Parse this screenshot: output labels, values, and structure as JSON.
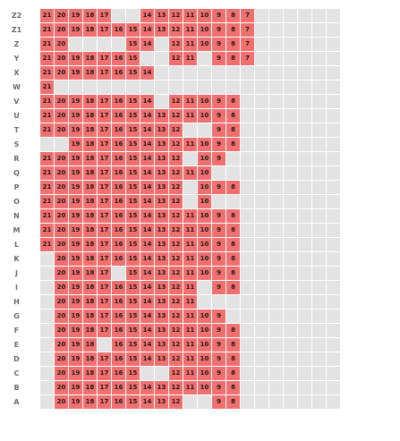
{
  "seat_map": {
    "columns": 21,
    "colors": {
      "available": "#f26f6f",
      "empty": "#e3e3e3",
      "label": "#6a6a6a"
    },
    "rows": [
      {
        "label": "Z2",
        "seats": [
          "21",
          "20",
          "19",
          "18",
          "17",
          "",
          "",
          "14",
          "13",
          "12",
          "11",
          "10",
          "9",
          "8",
          "7",
          "",
          "",
          "",
          "",
          "",
          ""
        ]
      },
      {
        "label": "Z1",
        "seats": [
          "21",
          "20",
          "19",
          "18",
          "17",
          "16",
          "15",
          "14",
          "13",
          "12",
          "11",
          "10",
          "9",
          "8",
          "7",
          "",
          "",
          "",
          "",
          "",
          ""
        ]
      },
      {
        "label": "Z",
        "seats": [
          "21",
          "20",
          "",
          "",
          "",
          "",
          "15",
          "14",
          "",
          "12",
          "11",
          "10",
          "9",
          "8",
          "7",
          "",
          "",
          "",
          "",
          "",
          ""
        ]
      },
      {
        "label": "Y",
        "seats": [
          "21",
          "20",
          "19",
          "18",
          "17",
          "16",
          "15",
          "",
          "",
          "12",
          "11",
          "",
          "9",
          "8",
          "7",
          "",
          "",
          "",
          "",
          "",
          ""
        ]
      },
      {
        "label": "X",
        "seats": [
          "21",
          "20",
          "19",
          "18",
          "17",
          "16",
          "15",
          "14",
          "",
          "",
          "",
          "",
          "",
          "",
          "",
          "",
          "",
          "",
          "",
          "",
          ""
        ]
      },
      {
        "label": "W",
        "seats": [
          "21",
          "",
          "",
          "",
          "",
          "",
          "",
          "",
          "",
          "",
          "",
          "",
          "",
          "",
          "",
          "",
          "",
          "",
          "",
          "",
          ""
        ]
      },
      {
        "label": "V",
        "seats": [
          "21",
          "20",
          "19",
          "18",
          "17",
          "16",
          "15",
          "14",
          "",
          "12",
          "11",
          "10",
          "9",
          "8",
          "",
          "",
          "",
          "",
          "",
          "",
          ""
        ]
      },
      {
        "label": "U",
        "seats": [
          "21",
          "20",
          "19",
          "18",
          "17",
          "16",
          "15",
          "14",
          "13",
          "12",
          "11",
          "10",
          "9",
          "8",
          "",
          "",
          "",
          "",
          "",
          "",
          ""
        ]
      },
      {
        "label": "T",
        "seats": [
          "21",
          "20",
          "19",
          "18",
          "17",
          "16",
          "15",
          "14",
          "13",
          "12",
          "",
          "",
          "9",
          "8",
          "",
          "",
          "",
          "",
          "",
          "",
          ""
        ]
      },
      {
        "label": "S",
        "seats": [
          "",
          "",
          "19",
          "18",
          "17",
          "16",
          "15",
          "14",
          "13",
          "12",
          "11",
          "10",
          "9",
          "8",
          "",
          "",
          "",
          "",
          "",
          "",
          ""
        ]
      },
      {
        "label": "R",
        "seats": [
          "21",
          "20",
          "19",
          "18",
          "17",
          "16",
          "15",
          "14",
          "13",
          "12",
          "",
          "10",
          "9",
          "",
          "",
          "",
          "",
          "",
          "",
          "",
          ""
        ]
      },
      {
        "label": "Q",
        "seats": [
          "21",
          "20",
          "19",
          "18",
          "17",
          "16",
          "15",
          "14",
          "13",
          "12",
          "11",
          "10",
          "",
          "",
          "",
          "",
          "",
          "",
          "",
          "",
          ""
        ]
      },
      {
        "label": "P",
        "seats": [
          "21",
          "20",
          "19",
          "18",
          "17",
          "16",
          "15",
          "14",
          "13",
          "12",
          "",
          "10",
          "9",
          "8",
          "",
          "",
          "",
          "",
          "",
          "",
          ""
        ]
      },
      {
        "label": "O",
        "seats": [
          "21",
          "20",
          "19",
          "18",
          "17",
          "16",
          "15",
          "14",
          "13",
          "12",
          "",
          "10",
          "",
          "",
          "",
          "",
          "",
          "",
          "",
          "",
          ""
        ]
      },
      {
        "label": "N",
        "seats": [
          "21",
          "20",
          "19",
          "18",
          "17",
          "16",
          "15",
          "14",
          "13",
          "12",
          "11",
          "10",
          "9",
          "8",
          "",
          "",
          "",
          "",
          "",
          "",
          ""
        ]
      },
      {
        "label": "M",
        "seats": [
          "21",
          "20",
          "19",
          "18",
          "17",
          "16",
          "15",
          "14",
          "13",
          "12",
          "11",
          "10",
          "9",
          "8",
          "",
          "",
          "",
          "",
          "",
          "",
          ""
        ]
      },
      {
        "label": "L",
        "seats": [
          "21",
          "20",
          "19",
          "18",
          "17",
          "16",
          "15",
          "14",
          "13",
          "12",
          "11",
          "10",
          "9",
          "8",
          "",
          "",
          "",
          "",
          "",
          "",
          ""
        ]
      },
      {
        "label": "K",
        "seats": [
          "",
          "20",
          "19",
          "18",
          "17",
          "16",
          "15",
          "14",
          "13",
          "12",
          "11",
          "10",
          "9",
          "8",
          "",
          "",
          "",
          "",
          "",
          "",
          ""
        ]
      },
      {
        "label": "J",
        "seats": [
          "",
          "20",
          "19",
          "18",
          "17",
          "",
          "15",
          "14",
          "13",
          "12",
          "11",
          "10",
          "9",
          "8",
          "",
          "",
          "",
          "",
          "",
          "",
          ""
        ]
      },
      {
        "label": "I",
        "seats": [
          "",
          "20",
          "19",
          "18",
          "17",
          "16",
          "15",
          "14",
          "13",
          "12",
          "11",
          "",
          "9",
          "8",
          "",
          "",
          "",
          "",
          "",
          "",
          ""
        ]
      },
      {
        "label": "H",
        "seats": [
          "",
          "20",
          "19",
          "18",
          "17",
          "16",
          "15",
          "14",
          "13",
          "12",
          "11",
          "",
          "",
          "",
          "",
          "",
          "",
          "",
          "",
          "",
          ""
        ]
      },
      {
        "label": "G",
        "seats": [
          "",
          "20",
          "19",
          "18",
          "17",
          "16",
          "15",
          "14",
          "13",
          "12",
          "11",
          "10",
          "9",
          "",
          "",
          "",
          "",
          "",
          "",
          "",
          ""
        ]
      },
      {
        "label": "F",
        "seats": [
          "",
          "20",
          "19",
          "18",
          "17",
          "16",
          "15",
          "14",
          "13",
          "12",
          "11",
          "10",
          "9",
          "8",
          "",
          "",
          "",
          "",
          "",
          "",
          ""
        ]
      },
      {
        "label": "E",
        "seats": [
          "",
          "20",
          "19",
          "18",
          "",
          "16",
          "15",
          "14",
          "13",
          "12",
          "11",
          "10",
          "9",
          "8",
          "",
          "",
          "",
          "",
          "",
          "",
          ""
        ]
      },
      {
        "label": "D",
        "seats": [
          "",
          "20",
          "19",
          "18",
          "17",
          "16",
          "15",
          "14",
          "13",
          "12",
          "11",
          "10",
          "9",
          "8",
          "",
          "",
          "",
          "",
          "",
          "",
          ""
        ]
      },
      {
        "label": "C",
        "seats": [
          "",
          "20",
          "19",
          "18",
          "17",
          "16",
          "15",
          "",
          "",
          "12",
          "11",
          "10",
          "9",
          "8",
          "",
          "",
          "",
          "",
          "",
          "",
          ""
        ]
      },
      {
        "label": "B",
        "seats": [
          "",
          "20",
          "19",
          "18",
          "17",
          "16",
          "15",
          "14",
          "13",
          "12",
          "11",
          "10",
          "9",
          "8",
          "",
          "",
          "",
          "",
          "",
          "",
          ""
        ]
      },
      {
        "label": "A",
        "seats": [
          "",
          "20",
          "19",
          "18",
          "17",
          "16",
          "15",
          "14",
          "13",
          "12",
          "",
          "",
          "9",
          "8",
          "",
          "",
          "",
          "",
          "",
          "",
          ""
        ]
      }
    ]
  }
}
